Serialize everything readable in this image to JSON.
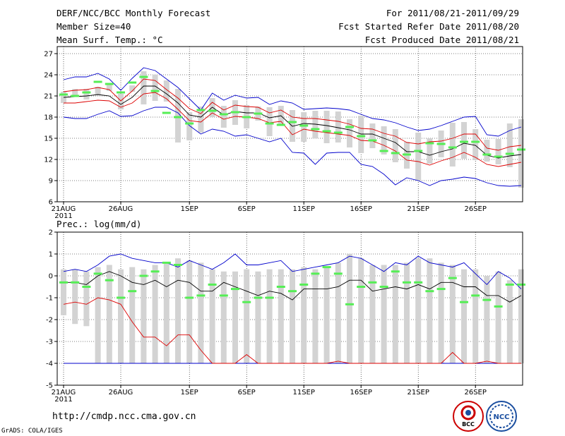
{
  "header": {
    "title": "DERF/NCC/BCC Monthly Forecast",
    "member_size": "Member Size=40",
    "variable": "Mean Surf. Temp.: °C",
    "period": "For 2011/08/21-2011/09/29",
    "refer_date": "Fcst Started Refer Date 2011/08/20",
    "produced_date": "Fcst Produced Date 2011/08/21"
  },
  "footer": {
    "url": "http://cmdp.ncc.cma.gov.cn",
    "grads": "GrADS: COLA/IGES",
    "logo_left_text": "BCC",
    "logo_right_text": "NCC"
  },
  "colors": {
    "envelope": "#0000cc",
    "spread": "#dd0000",
    "mean": "#000000",
    "bar": "#d3d3d3",
    "obs": "#55ee55"
  },
  "chart_data": [
    {
      "type": "line",
      "title": "Mean Surf. Temp.: °C",
      "ylim": [
        6,
        28
      ],
      "yticks": [
        6,
        9,
        12,
        15,
        18,
        21,
        24,
        27
      ],
      "x_tick_labels": [
        "21AUG",
        "26AUG",
        "1SEP",
        "6SEP",
        "11SEP",
        "16SEP",
        "21SEP",
        "26SEP"
      ],
      "x_tick_days": [
        0,
        5,
        11,
        16,
        21,
        26,
        31,
        36
      ],
      "year_label": "2011",
      "n_days": 40,
      "series": [
        {
          "name": "max",
          "values": [
            23.3,
            23.7,
            23.7,
            24.2,
            23.4,
            21.8,
            23.5,
            25.0,
            24.6,
            23.4,
            22.2,
            20.6,
            19.0,
            21.4,
            20.4,
            21.1,
            20.7,
            20.8,
            19.8,
            20.3,
            20.0,
            19.1,
            19.2,
            19.3,
            19.2,
            19.0,
            18.4,
            17.8,
            17.6,
            17.2,
            16.6,
            16.1,
            16.3,
            16.8,
            17.4,
            18.0,
            18.1,
            15.5,
            15.3,
            16.1,
            16.6
          ]
        },
        {
          "name": "mean_plus_sd",
          "values": [
            21.6,
            21.8,
            21.9,
            22.2,
            21.9,
            20.3,
            21.7,
            23.4,
            23.2,
            21.9,
            20.7,
            19.2,
            18.5,
            20.1,
            19.0,
            19.7,
            19.5,
            19.4,
            18.6,
            19.0,
            18.0,
            17.8,
            17.8,
            17.6,
            17.4,
            17.0,
            16.4,
            16.3,
            15.7,
            15.3,
            14.4,
            14.2,
            14.5,
            14.6,
            15.0,
            15.6,
            15.6,
            13.6,
            13.3,
            13.8,
            14.0
          ]
        },
        {
          "name": "mean",
          "values": [
            20.8,
            20.9,
            21.0,
            21.2,
            21.0,
            19.8,
            20.8,
            22.4,
            22.4,
            21.3,
            20.0,
            18.3,
            18.0,
            19.4,
            18.3,
            18.8,
            18.6,
            18.6,
            17.9,
            18.2,
            16.7,
            17.1,
            17.0,
            16.8,
            16.5,
            16.2,
            15.6,
            15.6,
            15.0,
            14.4,
            13.1,
            13.1,
            12.6,
            13.1,
            13.5,
            14.3,
            14.0,
            12.6,
            12.2,
            12.5,
            12.7
          ]
        },
        {
          "name": "mean_minus_sd",
          "values": [
            20.0,
            20.0,
            20.2,
            20.4,
            20.3,
            19.4,
            20.0,
            21.3,
            21.5,
            20.6,
            19.1,
            17.5,
            17.3,
            18.6,
            17.7,
            18.1,
            18.0,
            17.8,
            17.2,
            17.4,
            15.5,
            16.3,
            16.0,
            15.8,
            15.6,
            15.4,
            14.7,
            14.6,
            14.0,
            13.2,
            11.9,
            11.7,
            11.2,
            11.8,
            12.3,
            13.0,
            12.3,
            11.3,
            11.0,
            11.3,
            11.6
          ]
        },
        {
          "name": "min",
          "values": [
            18.0,
            17.8,
            17.8,
            18.4,
            18.9,
            18.1,
            18.2,
            18.9,
            19.4,
            19.4,
            18.6,
            16.8,
            15.6,
            16.3,
            16.0,
            15.3,
            15.5,
            15.0,
            14.5,
            15.0,
            13.0,
            12.9,
            11.3,
            12.9,
            13.0,
            13.0,
            11.3,
            11.0,
            9.9,
            8.4,
            9.4,
            9.0,
            8.3,
            9.0,
            9.2,
            9.5,
            9.3,
            8.7,
            8.3,
            8.2,
            8.3
          ]
        },
        {
          "name": "bar_top",
          "values": [
            21.6,
            22.0,
            22.0,
            22.3,
            22.7,
            21.3,
            22.5,
            24.5,
            24.0,
            23.2,
            22.0,
            18.7,
            19.5,
            20.7,
            19.6,
            20.4,
            19.7,
            19.5,
            19.4,
            19.6,
            19.0,
            18.7,
            18.9,
            18.9,
            18.8,
            17.7,
            18.2,
            17.1,
            16.7,
            16.3,
            14.5,
            15.8,
            15.0,
            16.1,
            17.2,
            17.3,
            16.3,
            14.8,
            14.9,
            17.1,
            17.7
          ]
        },
        {
          "name": "bar_bottom",
          "values": [
            20.0,
            20.9,
            20.5,
            21.1,
            21.7,
            19.1,
            21.6,
            19.8,
            20.3,
            20.2,
            14.4,
            14.7,
            15.8,
            18.0,
            16.5,
            16.9,
            16.4,
            17.5,
            15.3,
            17.0,
            14.5,
            14.5,
            15.0,
            14.3,
            14.4,
            13.7,
            12.9,
            13.6,
            12.7,
            11.6,
            10.7,
            9.0,
            11.4,
            12.3,
            11.0,
            12.1,
            11.9,
            11.7,
            11.3,
            10.9,
            8.0
          ]
        },
        {
          "name": "obs_marker",
          "values": [
            21.2,
            21.0,
            21.5,
            23.0,
            22.7,
            21.5,
            22.9,
            23.7,
            21.7,
            18.6,
            18.0,
            17.1,
            19.0,
            18.9,
            18.4,
            18.7,
            18.0,
            18.5,
            17.1,
            16.9,
            17.3,
            16.8,
            16.3,
            16.0,
            15.8,
            16.6,
            15.3,
            14.7,
            13.2,
            12.9,
            12.7,
            13.2,
            14.3,
            14.2,
            13.7,
            14.5,
            14.5,
            12.7,
            12.4,
            12.8,
            13.4
          ]
        }
      ]
    },
    {
      "type": "line",
      "title": "Prec.: log(mm/d)",
      "ylim": [
        -5,
        2
      ],
      "yticks": [
        -5,
        -4,
        -3,
        -2,
        -1,
        0,
        1,
        2
      ],
      "x_tick_labels": [
        "21AUG",
        "26AUG",
        "1SEP",
        "6SEP",
        "11SEP",
        "16SEP",
        "21SEP",
        "26SEP"
      ],
      "x_tick_days": [
        0,
        5,
        11,
        16,
        21,
        26,
        31,
        36
      ],
      "year_label": "2011",
      "n_days": 40,
      "series": [
        {
          "name": "max",
          "values": [
            0.2,
            0.3,
            0.2,
            0.5,
            0.9,
            1.0,
            0.8,
            0.7,
            0.6,
            0.6,
            0.4,
            0.7,
            0.5,
            0.3,
            0.6,
            1.0,
            0.5,
            0.5,
            0.6,
            0.7,
            0.2,
            0.3,
            0.4,
            0.5,
            0.6,
            0.9,
            0.8,
            0.5,
            0.2,
            0.6,
            0.5,
            0.9,
            0.6,
            0.5,
            0.4,
            0.6,
            0.1,
            -0.4,
            0.2,
            -0.1,
            -0.6
          ]
        },
        {
          "name": "mean",
          "values": [
            -0.3,
            -0.3,
            -0.4,
            0.0,
            0.2,
            0.0,
            -0.3,
            -0.4,
            -0.2,
            -0.5,
            -0.2,
            -0.3,
            -0.7,
            -0.7,
            -0.3,
            -0.5,
            -0.7,
            -0.9,
            -0.7,
            -0.8,
            -1.1,
            -0.6,
            -0.6,
            -0.6,
            -0.5,
            -0.2,
            -0.2,
            -0.7,
            -0.6,
            -0.5,
            -0.6,
            -0.4,
            -0.6,
            -0.3,
            -0.3,
            -0.5,
            -0.5,
            -0.9,
            -0.9,
            -1.2,
            -0.9
          ]
        },
        {
          "name": "mean_minus_sd",
          "values": [
            -1.3,
            -1.2,
            -1.3,
            -1.0,
            -1.1,
            -1.3,
            -2.1,
            -2.8,
            -2.8,
            -3.2,
            -2.7,
            -2.7,
            -3.4,
            -4.0,
            -4.0,
            -4.0,
            -3.6,
            -4.0,
            -4.0,
            -4.0,
            -4.0,
            -4.0,
            -4.0,
            -4.0,
            -3.9,
            -4.0,
            -4.0,
            -4.0,
            -4.0,
            -4.0,
            -4.0,
            -4.0,
            -4.0,
            -4.0,
            -3.5,
            -4.0,
            -4.0,
            -3.9,
            -4.0,
            -4.0,
            -4.0
          ]
        },
        {
          "name": "min",
          "values": [
            -4.0,
            -4.0,
            -4.0,
            -4.0,
            -4.0,
            -4.0,
            -4.0,
            -4.0,
            -4.0,
            -4.0,
            -4.0,
            -4.0,
            -4.0,
            -4.0,
            -4.0,
            -4.0,
            -4.0,
            -4.0,
            -4.0,
            -4.0,
            -4.0,
            -4.0,
            -4.0,
            -4.0,
            -4.0,
            -4.0,
            -4.0,
            -4.0,
            -4.0,
            -4.0,
            -4.0,
            -4.0,
            -4.0,
            -4.0,
            -4.0,
            -4.0,
            -4.0,
            -4.0,
            -4.0,
            -4.0,
            -4.0
          ]
        },
        {
          "name": "bar_top",
          "values": [
            0.3,
            0.3,
            0.2,
            0.4,
            0.5,
            0.3,
            0.4,
            0.3,
            0.5,
            0.6,
            0.8,
            0.7,
            0.6,
            0.3,
            0.2,
            0.2,
            0.3,
            0.2,
            0.3,
            0.3,
            0.3,
            0.4,
            0.3,
            0.4,
            0.6,
            1.0,
            0.8,
            0.5,
            0.5,
            0.5,
            0.6,
            0.8,
            0.8,
            0.6,
            0.5,
            0.3,
            0.3,
            0.0,
            0.2,
            -0.2,
            0.3
          ]
        },
        {
          "name": "bar_bottom",
          "values": [
            -1.8,
            -2.2,
            -2.3,
            -4.0,
            -4.0,
            -4.0,
            -4.0,
            -4.0,
            -4.0,
            -4.0,
            -4.0,
            -4.0,
            -4.0,
            -4.0,
            -4.0,
            -4.0,
            -4.0,
            -4.0,
            -4.0,
            -4.0,
            -4.0,
            -4.0,
            -4.0,
            -4.0,
            -4.0,
            -4.0,
            -4.0,
            -4.0,
            -4.0,
            -4.0,
            -4.0,
            -4.0,
            -4.0,
            -4.0,
            -4.0,
            -4.0,
            -4.0,
            -4.0,
            -4.0,
            -4.0,
            -4.0
          ]
        },
        {
          "name": "obs_marker",
          "values": [
            -0.3,
            -0.3,
            -0.5,
            0.1,
            -0.2,
            -1.0,
            -0.7,
            0.0,
            0.2,
            0.6,
            0.5,
            -1.0,
            -0.9,
            -0.4,
            -0.9,
            -0.6,
            -1.2,
            -1.0,
            -1.0,
            -0.5,
            -0.7,
            -0.4,
            0.1,
            0.4,
            0.1,
            -1.3,
            -0.5,
            -0.3,
            -0.5,
            0.2,
            -0.3,
            -0.3,
            -0.7,
            -0.6,
            -0.1,
            -1.2,
            -0.9,
            -1.1,
            -1.4,
            -0.4,
            -0.4
          ]
        }
      ]
    }
  ]
}
